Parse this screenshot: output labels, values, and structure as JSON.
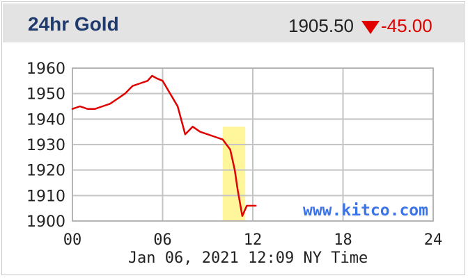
{
  "header": {
    "title": "24hr Gold",
    "price": "1905.50",
    "change": "-45.00",
    "direction_icon": "down-triangle-icon",
    "change_color": "#e00000"
  },
  "chart_data": {
    "type": "line",
    "xlabel": "Jan 06, 2021 12:09 NY Time",
    "ylabel": "",
    "xlim": [
      0,
      24
    ],
    "ylim": [
      1900,
      1960
    ],
    "x_ticks": [
      "00",
      "06",
      "12",
      "18",
      "24"
    ],
    "y_ticks": [
      "1960",
      "1950",
      "1940",
      "1930",
      "1920",
      "1910",
      "1900"
    ],
    "grid": true,
    "watermark": "www.kitco.com",
    "line_color": "#e00000",
    "highlight": {
      "x_start": 10.0,
      "x_end": 11.5,
      "color": "#fff59a"
    },
    "series": [
      {
        "x": [
          0,
          0.5,
          1.0,
          1.5,
          2.0,
          2.5,
          3.0,
          3.5,
          4.0,
          4.5,
          5.0,
          5.3,
          5.6,
          6.0,
          6.5,
          7.0,
          7.5,
          8.0,
          8.5,
          9.0,
          9.5,
          10.0,
          10.5,
          10.8,
          11.0,
          11.3,
          11.6,
          12.0,
          12.2
        ],
        "y": [
          1944,
          1945,
          1944,
          1944,
          1945,
          1946,
          1948,
          1950,
          1953,
          1954,
          1955,
          1957,
          1956,
          1955,
          1950,
          1945,
          1934,
          1937,
          1935,
          1934,
          1933,
          1932,
          1928,
          1920,
          1912,
          1902,
          1906,
          1906,
          1906
        ]
      }
    ]
  }
}
